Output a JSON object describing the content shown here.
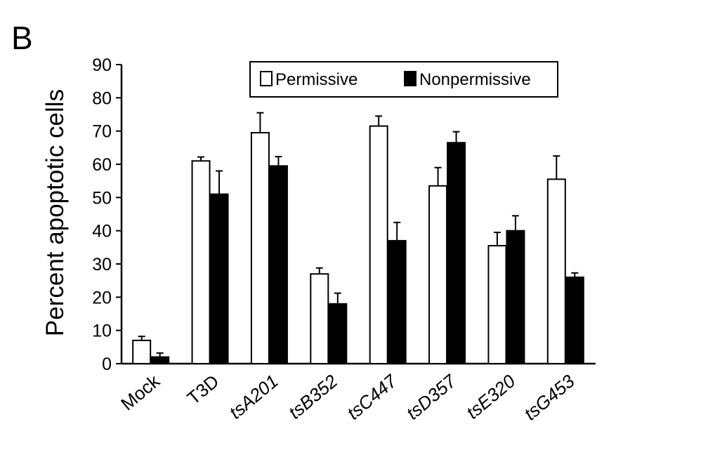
{
  "panel_label": "B",
  "chart_data": {
    "type": "bar",
    "title": "",
    "ylabel": "Percent apoptotic cells",
    "xlabel": "",
    "ylim": [
      0,
      90
    ],
    "yticks": [
      0,
      10,
      20,
      30,
      40,
      50,
      60,
      70,
      80,
      90
    ],
    "categories": [
      {
        "text": "Mock",
        "italic_prefix": ""
      },
      {
        "text": "T3D",
        "italic_prefix": ""
      },
      {
        "text": "A201",
        "italic_prefix": "ts"
      },
      {
        "text": "B352",
        "italic_prefix": "ts"
      },
      {
        "text": "C447",
        "italic_prefix": "ts"
      },
      {
        "text": "D357",
        "italic_prefix": "ts"
      },
      {
        "text": "E320",
        "italic_prefix": "ts"
      },
      {
        "text": "G453",
        "italic_prefix": "ts"
      }
    ],
    "series": [
      {
        "name": "Permissive",
        "color": "#ffffff",
        "values": [
          7,
          61,
          69.5,
          27,
          71.5,
          53.5,
          35.5,
          55.5
        ],
        "errors": [
          1.2,
          1.2,
          6,
          1.8,
          3,
          5.5,
          4,
          7
        ]
      },
      {
        "name": "Nonpermissive",
        "color": "#000000",
        "values": [
          2,
          51,
          59.5,
          18,
          37,
          66.5,
          40,
          26
        ],
        "errors": [
          1.2,
          7,
          2.8,
          3.2,
          5.5,
          3.3,
          4.5,
          1.3
        ]
      }
    ],
    "legend_position": "top-right",
    "grid": false,
    "error_bars": "upper"
  }
}
